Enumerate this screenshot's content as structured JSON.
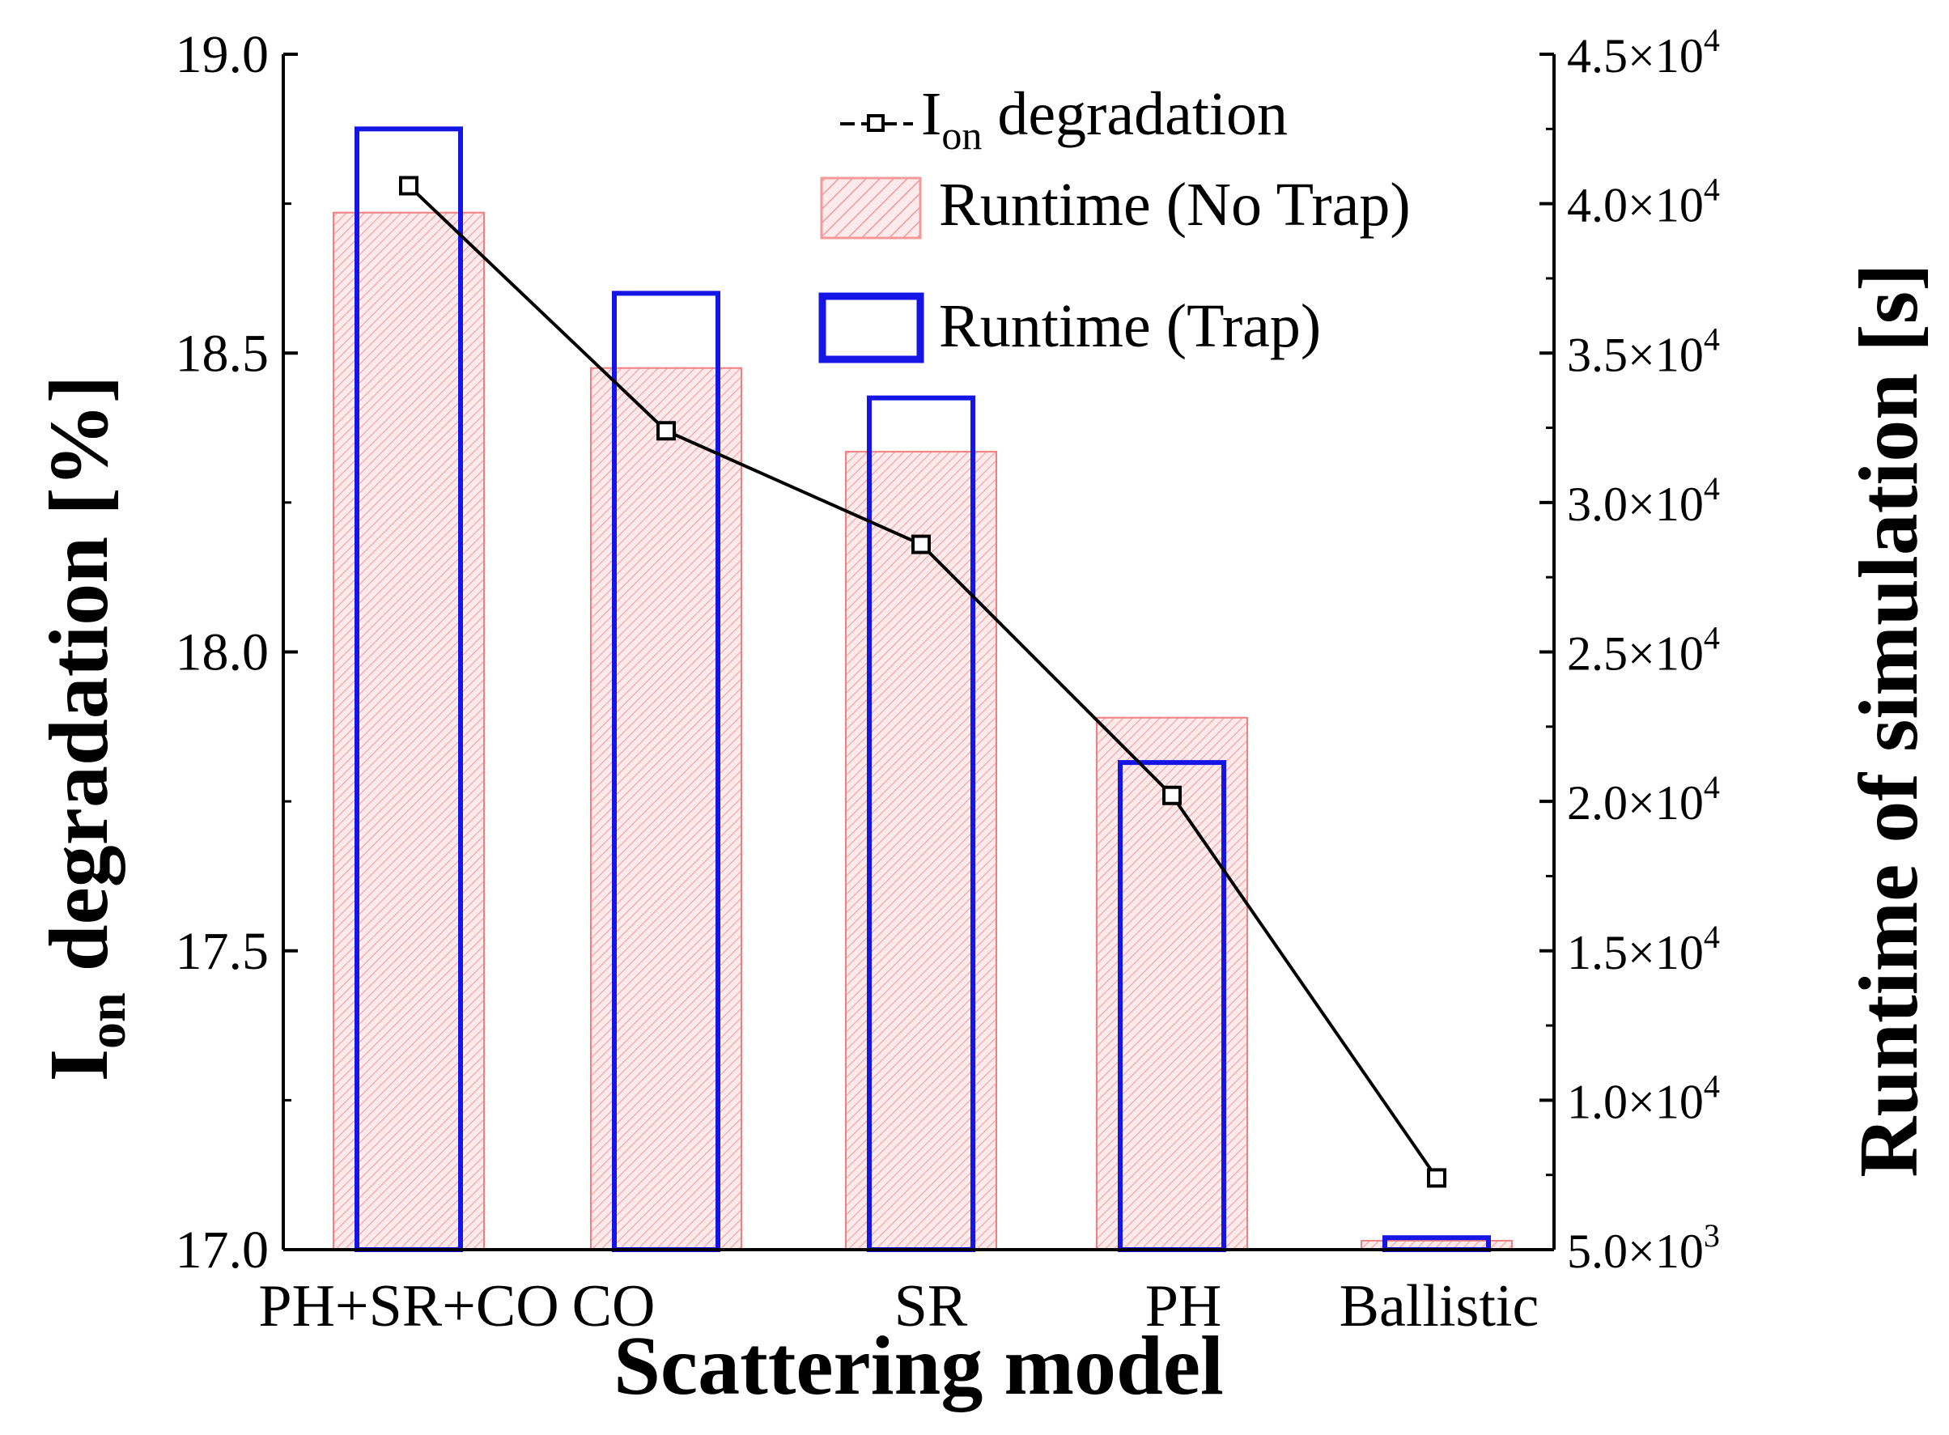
{
  "chart_data": {
    "type": "bar",
    "categories": [
      "PH+SR+CO",
      "CO",
      "SR",
      "PH",
      "Ballistic"
    ],
    "xlabel": "Scattering model",
    "ylabel_left": {
      "main": "I",
      "sub": "on",
      "rest": " degradation [%]"
    },
    "ylabel_right": "Runtime of simulation [s]",
    "left_axis": {
      "ylim": [
        17.0,
        19.0
      ],
      "ticks": [
        17.0,
        17.5,
        18.0,
        18.5,
        19.0
      ],
      "tick_labels": [
        "17.0",
        "17.5",
        "18.0",
        "18.5",
        "19.0"
      ]
    },
    "right_axis": {
      "ylim": [
        5000,
        45000
      ],
      "ticks": [
        5000,
        10000,
        15000,
        20000,
        25000,
        30000,
        35000,
        40000,
        45000
      ],
      "tick_labels": [
        {
          "mant": "5.0",
          "exp": "3"
        },
        {
          "mant": "1.0",
          "exp": "4"
        },
        {
          "mant": "1.5",
          "exp": "4"
        },
        {
          "mant": "2.0",
          "exp": "4"
        },
        {
          "mant": "2.5",
          "exp": "4"
        },
        {
          "mant": "3.0",
          "exp": "4"
        },
        {
          "mant": "3.5",
          "exp": "4"
        },
        {
          "mant": "4.0",
          "exp": "4"
        },
        {
          "mant": "4.5",
          "exp": "4"
        }
      ]
    },
    "series": [
      {
        "name": "Runtime (No Trap)",
        "axis": "right",
        "kind": "bar-hatched",
        "values": [
          39700,
          34500,
          31700,
          22800,
          5300
        ]
      },
      {
        "name": "Runtime (Trap)",
        "axis": "right",
        "kind": "bar-outline",
        "values": [
          42500,
          37000,
          33500,
          21300,
          5400
        ]
      },
      {
        "name": "I_on degradation",
        "axis": "left",
        "kind": "line-marker",
        "values": [
          18.78,
          18.37,
          18.18,
          17.76,
          17.12
        ]
      }
    ],
    "legend": [
      {
        "main": "I",
        "sub": "on",
        "rest": " degradation"
      },
      {
        "text": "Runtime (No Trap)"
      },
      {
        "text": "Runtime (Trap)"
      }
    ],
    "colors": {
      "hatch_bar": "#f07f7f",
      "outline_bar": "#1515e6",
      "line": "#000000"
    }
  }
}
